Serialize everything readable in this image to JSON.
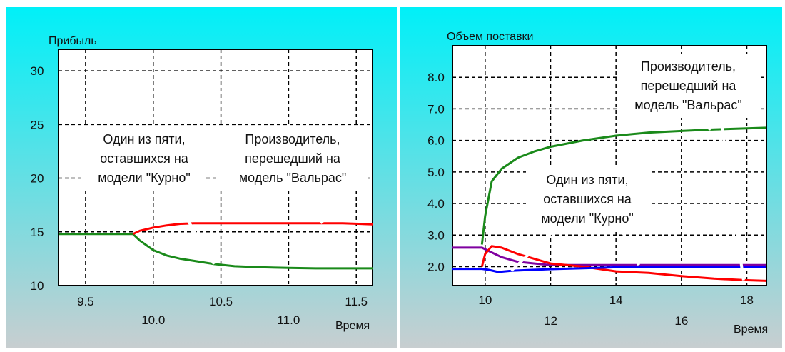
{
  "colors": {
    "bg_top": "#00f0f8",
    "bg_bottom": "#c8ced0",
    "plot_bg": "#ffffff",
    "green": "#1a8a1a",
    "red": "#ff0000",
    "blue": "#0000ff",
    "purple": "#7f00a0",
    "annotation_line": "#ffffff"
  },
  "chart_data": [
    {
      "type": "line",
      "title": "",
      "ylabel": "Прибыль",
      "xlabel": "Время",
      "xlim": [
        9.3,
        11.62
      ],
      "ylim": [
        10,
        32
      ],
      "grid": true,
      "xticks_top_row": [
        "9.5",
        "10.5",
        "11.5"
      ],
      "xticks_bottom_row": [
        "10.0",
        "11.0"
      ],
      "xtick_values_top": [
        9.5,
        10.5,
        11.5
      ],
      "xtick_values_bottom": [
        10.0,
        11.0
      ],
      "yticks": [
        "10",
        "15",
        "20",
        "25",
        "30"
      ],
      "ytick_values": [
        10,
        15,
        20,
        25,
        30
      ],
      "series": [
        {
          "color": "green",
          "x": [
            9.3,
            9.5,
            9.8,
            9.85,
            9.9,
            10.0,
            10.1,
            10.2,
            10.3,
            10.45,
            10.6,
            10.8,
            11.0,
            11.2,
            11.4,
            11.62
          ],
          "y": [
            14.8,
            14.8,
            14.8,
            14.8,
            14.2,
            13.3,
            12.8,
            12.5,
            12.3,
            12.0,
            11.8,
            11.7,
            11.65,
            11.6,
            11.6,
            11.6
          ]
        },
        {
          "color": "red",
          "x": [
            9.85,
            9.9,
            10.0,
            10.1,
            10.2,
            10.3,
            10.45,
            10.6,
            10.8,
            11.0,
            11.2,
            11.4,
            11.62
          ],
          "y": [
            14.8,
            15.1,
            15.4,
            15.6,
            15.75,
            15.8,
            15.8,
            15.8,
            15.8,
            15.8,
            15.8,
            15.8,
            15.7
          ]
        }
      ],
      "annotations": [
        {
          "lines": [
            "Один из пяти,",
            "оставшихся на",
            "модели \"Курно\""
          ],
          "points_to": [
            10.45,
            12.0
          ]
        },
        {
          "lines": [
            "Производитель,",
            "перешедший на",
            "модель \"Вальрас\""
          ],
          "points_to": [
            11.25,
            15.8
          ]
        }
      ]
    },
    {
      "type": "line",
      "title": "",
      "ylabel": "Объем поставки",
      "xlabel": "Время",
      "xlim": [
        9.0,
        18.6
      ],
      "ylim": [
        1.4,
        9.0
      ],
      "grid": true,
      "xticks_top_row": [
        "10",
        "14",
        "18"
      ],
      "xticks_bottom_row": [
        "12",
        "16"
      ],
      "xtick_values_top": [
        10,
        14,
        18
      ],
      "xtick_values_bottom": [
        12,
        16
      ],
      "yticks": [
        "2.0",
        "3.0",
        "4.0",
        "5.0",
        "6.0",
        "7.0",
        "8.0"
      ],
      "ytick_values": [
        2,
        3,
        4,
        5,
        6,
        7,
        8
      ],
      "series": [
        {
          "color": "green",
          "x": [
            9.9,
            10.0,
            10.2,
            10.5,
            11.0,
            11.5,
            12.0,
            13.0,
            14.0,
            15.0,
            16.0,
            17.0,
            18.0,
            18.6
          ],
          "y": [
            2.7,
            3.6,
            4.7,
            5.1,
            5.45,
            5.65,
            5.8,
            6.0,
            6.15,
            6.25,
            6.3,
            6.35,
            6.38,
            6.4
          ]
        },
        {
          "color": "purple",
          "x": [
            9.0,
            9.5,
            9.9,
            10.1,
            10.5,
            11.0,
            12.0,
            13.0,
            14.0,
            15.0,
            16.0,
            17.0,
            18.0,
            18.6
          ],
          "y": [
            2.6,
            2.6,
            2.6,
            2.5,
            2.3,
            2.15,
            2.05,
            2.05,
            2.05,
            2.05,
            2.05,
            2.05,
            2.05,
            2.05
          ]
        },
        {
          "color": "red",
          "x": [
            9.9,
            10.0,
            10.2,
            10.5,
            11.0,
            12.0,
            13.0,
            14.0,
            15.0,
            16.0,
            17.0,
            18.0,
            18.6
          ],
          "y": [
            2.0,
            2.4,
            2.65,
            2.6,
            2.4,
            2.1,
            2.0,
            1.85,
            1.8,
            1.7,
            1.62,
            1.57,
            1.55
          ]
        },
        {
          "color": "blue",
          "x": [
            9.0,
            9.5,
            9.9,
            10.1,
            10.4,
            10.8,
            11.5,
            12.0,
            13.0,
            14.0,
            15.0,
            16.0,
            17.0,
            18.0,
            18.6
          ],
          "y": [
            1.93,
            1.93,
            1.93,
            1.9,
            1.83,
            1.87,
            1.9,
            1.92,
            1.95,
            1.98,
            2.0,
            2.0,
            2.0,
            2.0,
            2.0
          ]
        }
      ],
      "annotations": [
        {
          "lines": [
            "Производитель,",
            "перешедший на",
            "модель \"Вальрас\""
          ],
          "points_to": [
            16.9,
            6.35
          ]
        },
        {
          "lines": [
            "Один из пяти,",
            "оставшихся на",
            "модели \"Курно\""
          ],
          "points_to": [
            10.8,
            1.87
          ]
        },
        {
          "lines": [
            "Один из пяти,",
            "оставшихся на",
            "модели \"Курно\""
          ],
          "points_to": [
            14.7,
            2.05
          ]
        },
        {
          "lines": [
            "Производитель,",
            "перешедший на",
            "модель \"Вальрас\""
          ],
          "points_to": [
            17.9,
            1.57
          ]
        }
      ]
    }
  ]
}
